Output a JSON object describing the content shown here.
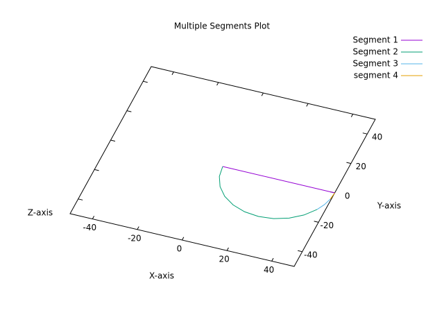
{
  "chart_data": {
    "type": "line3d",
    "title": "Multiple Segments Plot",
    "x_label": "X-axis",
    "y_label": "Y-axis",
    "z_label": "Z-axis",
    "xlim": [
      -50,
      50
    ],
    "ylim": [
      -50,
      50
    ],
    "xticks": [
      -40,
      -20,
      0,
      20,
      40
    ],
    "yticks": [
      -40,
      -20,
      0,
      20,
      40
    ],
    "legend": "top-right",
    "series": [
      {
        "name": "Segment 1",
        "color": "#9400d3",
        "x": [
          0,
          50
        ],
        "values": [
          0,
          0
        ]
      },
      {
        "name": "Segment 2",
        "color": "#009e73",
        "x": [
          0,
          0.85,
          3.35,
          7.32,
          12.5,
          18.53,
          25,
          31.47,
          37.5,
          42.68,
          46.65
        ],
        "values": [
          0,
          -6.47,
          -12.5,
          -17.68,
          -21.65,
          -24.15,
          -25,
          -24.15,
          -21.65,
          -17.68,
          -12.5
        ]
      },
      {
        "name": "Segment 3",
        "color": "#56b4e9",
        "x": [
          46.65,
          48.49,
          49.62
        ],
        "values": [
          -12.5,
          -8.55,
          -4.34
        ]
      },
      {
        "name": "segment 4",
        "color": "#e69f00",
        "x": [
          49.62,
          50
        ],
        "values": [
          -4.34,
          0
        ]
      }
    ]
  }
}
